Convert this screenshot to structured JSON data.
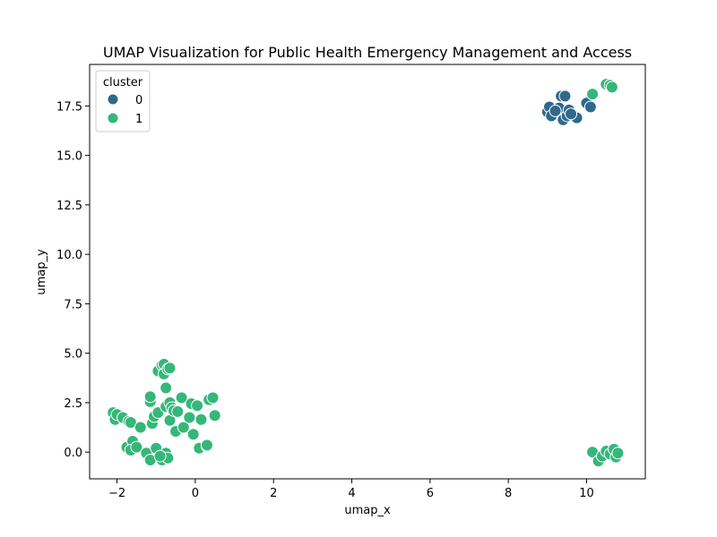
{
  "chart_data": {
    "type": "scatter",
    "title": "UMAP Visualization for Public Health Emergency Management and Access",
    "xlabel": "umap_x",
    "ylabel": "umap_y",
    "xlim": [
      -2.7,
      11.5
    ],
    "ylim": [
      -1.35,
      19.6
    ],
    "xticks": [
      -2,
      0,
      2,
      4,
      6,
      8,
      10
    ],
    "yticks": [
      0.0,
      2.5,
      5.0,
      7.5,
      10.0,
      12.5,
      15.0,
      17.5
    ],
    "xtick_labels": [
      "−2",
      "0",
      "2",
      "4",
      "6",
      "8",
      "10"
    ],
    "ytick_labels": [
      "0.0",
      "2.5",
      "5.0",
      "7.5",
      "10.0",
      "12.5",
      "15.0",
      "17.5"
    ],
    "grid": false,
    "legend": {
      "title": "cluster",
      "placement": "top-left",
      "entries": [
        {
          "label": "0",
          "color": "#30688e"
        },
        {
          "label": "1",
          "color": "#35b779"
        }
      ]
    },
    "series": [
      {
        "name": "0",
        "color": "#30688e",
        "points": [
          [
            9.0,
            17.2
          ],
          [
            9.05,
            17.45
          ],
          [
            9.1,
            17.0
          ],
          [
            9.3,
            17.4
          ],
          [
            9.35,
            18.0
          ],
          [
            9.45,
            18.0
          ],
          [
            9.4,
            16.8
          ],
          [
            9.5,
            17.0
          ],
          [
            9.55,
            17.3
          ],
          [
            9.65,
            17.05
          ],
          [
            9.75,
            16.9
          ],
          [
            10.0,
            17.65
          ],
          [
            10.1,
            17.45
          ],
          [
            9.2,
            17.25
          ],
          [
            9.6,
            17.1
          ]
        ]
      },
      {
        "name": "1",
        "color": "#35b779",
        "points": [
          [
            10.5,
            18.6
          ],
          [
            10.6,
            18.55
          ],
          [
            10.65,
            18.45
          ],
          [
            10.15,
            18.1
          ],
          [
            10.15,
            0.0
          ],
          [
            10.3,
            -0.45
          ],
          [
            10.4,
            -0.2
          ],
          [
            10.5,
            0.05
          ],
          [
            10.6,
            -0.1
          ],
          [
            10.7,
            0.15
          ],
          [
            10.75,
            -0.25
          ],
          [
            10.8,
            -0.05
          ],
          [
            -2.1,
            2.0
          ],
          [
            -2.05,
            1.65
          ],
          [
            -2.0,
            1.9
          ],
          [
            -1.85,
            1.75
          ],
          [
            -1.7,
            1.55
          ],
          [
            -1.65,
            1.5
          ],
          [
            -1.75,
            0.25
          ],
          [
            -1.6,
            0.55
          ],
          [
            -1.65,
            0.1
          ],
          [
            -1.5,
            0.25
          ],
          [
            -1.4,
            1.25
          ],
          [
            -1.25,
            -0.05
          ],
          [
            -1.15,
            2.55
          ],
          [
            -1.15,
            2.8
          ],
          [
            -1.15,
            -0.4
          ],
          [
            -1.1,
            1.45
          ],
          [
            -1.05,
            1.8
          ],
          [
            -1.0,
            0.2
          ],
          [
            -0.95,
            2.0
          ],
          [
            -0.95,
            4.1
          ],
          [
            -0.85,
            4.4
          ],
          [
            -0.8,
            4.45
          ],
          [
            -0.8,
            3.95
          ],
          [
            -0.75,
            3.25
          ],
          [
            -0.7,
            4.2
          ],
          [
            -0.65,
            4.25
          ],
          [
            -0.85,
            -0.4
          ],
          [
            -0.75,
            -0.05
          ],
          [
            -0.7,
            -0.3
          ],
          [
            -0.75,
            2.3
          ],
          [
            -0.65,
            2.5
          ],
          [
            -0.6,
            2.25
          ],
          [
            -0.65,
            1.6
          ],
          [
            -0.55,
            2.1
          ],
          [
            -0.5,
            1.05
          ],
          [
            -0.45,
            2.05
          ],
          [
            -0.35,
            2.75
          ],
          [
            -0.3,
            1.25
          ],
          [
            -0.15,
            1.75
          ],
          [
            -0.1,
            2.45
          ],
          [
            -0.05,
            0.9
          ],
          [
            0.05,
            2.35
          ],
          [
            0.1,
            0.2
          ],
          [
            0.15,
            1.65
          ],
          [
            0.3,
            0.3
          ],
          [
            0.35,
            2.65
          ],
          [
            0.45,
            2.75
          ],
          [
            0.5,
            1.85
          ],
          [
            0.3,
            0.35
          ],
          [
            -0.9,
            -0.2
          ]
        ]
      }
    ]
  }
}
